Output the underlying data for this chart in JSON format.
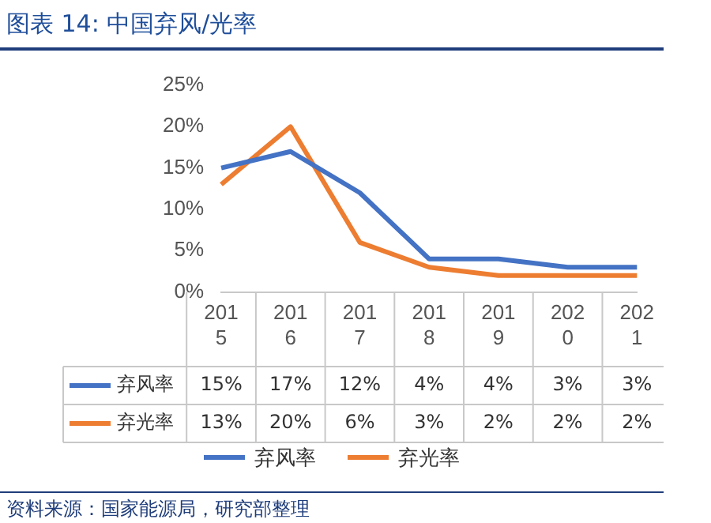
{
  "chart_data": {
    "type": "line",
    "title": "图表 14: 中国弃风/光率",
    "categories": [
      "2015",
      "2016",
      "2017",
      "2018",
      "2019",
      "2020",
      "2021"
    ],
    "series": [
      {
        "name": "弃风率",
        "color": "#4472c4",
        "values": [
          15,
          17,
          12,
          4,
          4,
          3,
          3
        ],
        "value_labels": [
          "15%",
          "17%",
          "12%",
          "4%",
          "4%",
          "3%",
          "3%"
        ]
      },
      {
        "name": "弃光率",
        "color": "#ed7d31",
        "values": [
          13,
          20,
          6,
          3,
          2,
          2,
          2
        ],
        "value_labels": [
          "13%",
          "20%",
          "6%",
          "3%",
          "2%",
          "2%",
          "2%"
        ]
      }
    ],
    "ylim": [
      0,
      25
    ],
    "yticks": [
      {
        "value": 0,
        "label": "0%"
      },
      {
        "value": 5,
        "label": "5%"
      },
      {
        "value": 10,
        "label": "10%"
      },
      {
        "value": 15,
        "label": "15%"
      },
      {
        "value": 20,
        "label": "20%"
      },
      {
        "value": 25,
        "label": "25%"
      }
    ],
    "grid": false,
    "legend": "bottom",
    "marker": "none",
    "line_style": "solid",
    "annotations": [
      "资料来源：国家能源局，研究部整理"
    ]
  }
}
